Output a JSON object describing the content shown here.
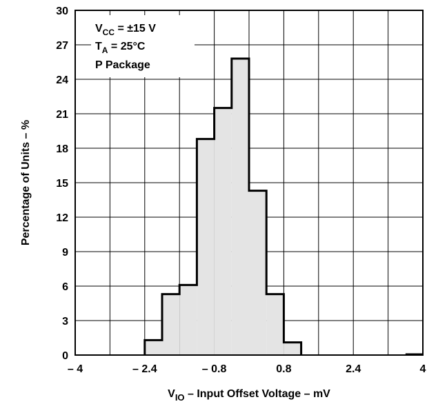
{
  "chart_data": {
    "type": "bar",
    "title": "",
    "xlabel": {
      "v_prefix": "V",
      "v_subscript": "IO",
      "text": " – Input Offset Voltage – mV"
    },
    "ylabel": "Percentage of Units – %",
    "xlim": [
      -4,
      4
    ],
    "ylim": [
      0,
      30
    ],
    "xticks": [
      -4,
      -2.4,
      -0.8,
      0.8,
      2.4,
      4
    ],
    "xtick_labels": [
      "– 4",
      "– 2.4",
      "– 0.8",
      "0.8",
      "2.4",
      "4"
    ],
    "yticks": [
      0,
      3,
      6,
      9,
      12,
      15,
      18,
      21,
      24,
      27,
      30
    ],
    "ytick_labels": [
      "0",
      "3",
      "6",
      "9",
      "12",
      "15",
      "18",
      "21",
      "24",
      "27",
      "30"
    ],
    "grid": true,
    "bins": [
      {
        "x0": -2.4,
        "x1": -2.0,
        "value": 1.3
      },
      {
        "x0": -2.0,
        "x1": -1.6,
        "value": 5.3
      },
      {
        "x0": -1.6,
        "x1": -1.2,
        "value": 6.1
      },
      {
        "x0": -1.2,
        "x1": -0.8,
        "value": 18.8
      },
      {
        "x0": -0.8,
        "x1": -0.4,
        "value": 21.5
      },
      {
        "x0": -0.4,
        "x1": 0.0,
        "value": 25.8
      },
      {
        "x0": 0.0,
        "x1": 0.4,
        "value": 14.3
      },
      {
        "x0": 0.4,
        "x1": 0.8,
        "value": 5.3
      },
      {
        "x0": 0.8,
        "x1": 1.2,
        "value": 1.1
      },
      {
        "x0": 3.6,
        "x1": 4.0,
        "value": 0.0
      }
    ],
    "annotation": {
      "line1": {
        "main": "V",
        "sub": "CC",
        "rest": " = ±15 V"
      },
      "line2": {
        "main": "T",
        "sub": "A",
        "rest": " = 25°C"
      },
      "line3": "P Package",
      "placement": "top-left"
    },
    "colors": {
      "fill": "#e4e4e4",
      "outline": "#000000",
      "grid": "#000000"
    }
  }
}
